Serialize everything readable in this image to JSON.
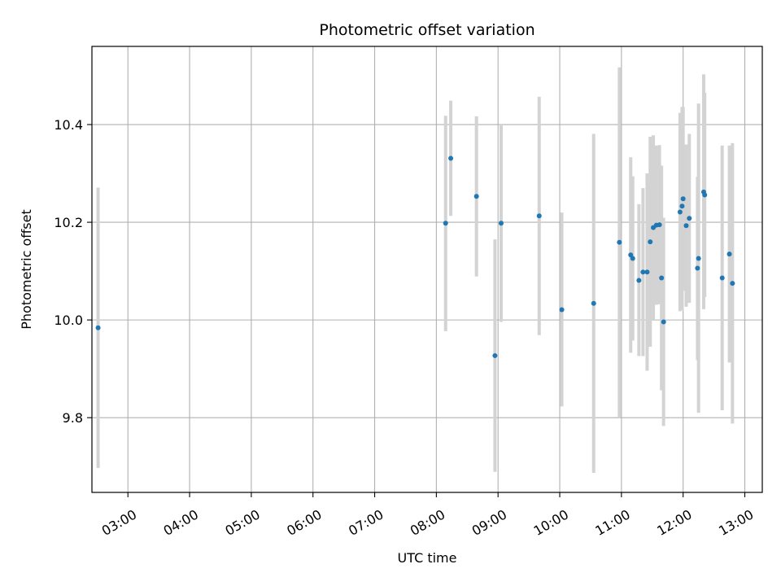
{
  "chart_data": {
    "type": "scatter",
    "title": "Photometric offset variation",
    "xlabel": "UTC time",
    "ylabel": "Photometric offset",
    "grid": true,
    "xlim": [
      "02:25",
      "13:17"
    ],
    "ylim": [
      9.647,
      10.56
    ],
    "x_ticks": [
      "03:00",
      "04:00",
      "05:00",
      "06:00",
      "07:00",
      "08:00",
      "09:00",
      "10:00",
      "11:00",
      "12:00",
      "13:00"
    ],
    "y_ticks": [
      9.8,
      10.0,
      10.2,
      10.4
    ],
    "y_tick_labels": [
      "9.8",
      "10.0",
      "10.2",
      "10.4"
    ],
    "colors": {
      "point": "#1f77b4",
      "errorbar": "#d3d3d3",
      "grid": "#b0b0b0"
    },
    "points": [
      {
        "time": "02:31",
        "y": 9.984,
        "low": 9.697,
        "high": 10.271
      },
      {
        "time": "08:09",
        "y": 10.198,
        "low": 9.977,
        "high": 10.418
      },
      {
        "time": "08:14",
        "y": 10.331,
        "low": 10.213,
        "high": 10.449
      },
      {
        "time": "08:39",
        "y": 10.253,
        "low": 10.089,
        "high": 10.417
      },
      {
        "time": "08:57",
        "y": 9.927,
        "low": 9.689,
        "high": 10.165
      },
      {
        "time": "09:03",
        "y": 10.198,
        "low": 9.996,
        "high": 10.4
      },
      {
        "time": "09:40",
        "y": 10.213,
        "low": 9.969,
        "high": 10.457
      },
      {
        "time": "10:02",
        "y": 10.021,
        "low": 9.823,
        "high": 10.22
      },
      {
        "time": "10:33",
        "y": 10.034,
        "low": 9.687,
        "high": 10.381
      },
      {
        "time": "10:58",
        "y": 10.159,
        "low": 9.8,
        "high": 10.517
      },
      {
        "time": "11:09",
        "y": 10.133,
        "low": 9.933,
        "high": 10.333
      },
      {
        "time": "11:11",
        "y": 10.126,
        "low": 9.958,
        "high": 10.294
      },
      {
        "time": "11:17",
        "y": 10.081,
        "low": 9.926,
        "high": 10.237
      },
      {
        "time": "11:21",
        "y": 10.098,
        "low": 9.926,
        "high": 10.27
      },
      {
        "time": "11:25",
        "y": 10.098,
        "low": 9.896,
        "high": 10.3
      },
      {
        "time": "11:28",
        "y": 10.16,
        "low": 9.945,
        "high": 10.375
      },
      {
        "time": "11:31",
        "y": 10.189,
        "low": 10.0,
        "high": 10.378
      },
      {
        "time": "11:34",
        "y": 10.194,
        "low": 10.031,
        "high": 10.357
      },
      {
        "time": "11:37",
        "y": 10.195,
        "low": 10.032,
        "high": 10.358
      },
      {
        "time": "11:39",
        "y": 10.086,
        "low": 9.856,
        "high": 10.316
      },
      {
        "time": "11:41",
        "y": 9.996,
        "low": 9.783,
        "high": 10.209
      },
      {
        "time": "11:57",
        "y": 10.221,
        "low": 10.018,
        "high": 10.424
      },
      {
        "time": "11:59",
        "y": 10.233,
        "low": 10.02,
        "high": 10.436
      },
      {
        "time": "12:00",
        "y": 10.248,
        "low": 10.06,
        "high": 10.436
      },
      {
        "time": "12:03",
        "y": 10.193,
        "low": 10.027,
        "high": 10.359
      },
      {
        "time": "12:06",
        "y": 10.208,
        "low": 10.035,
        "high": 10.381
      },
      {
        "time": "12:14",
        "y": 10.106,
        "low": 9.918,
        "high": 10.293
      },
      {
        "time": "12:15",
        "y": 10.126,
        "low": 9.81,
        "high": 10.443
      },
      {
        "time": "12:20",
        "y": 10.262,
        "low": 10.022,
        "high": 10.503
      },
      {
        "time": "12:21",
        "y": 10.256,
        "low": 10.047,
        "high": 10.465
      },
      {
        "time": "12:38",
        "y": 10.086,
        "low": 9.815,
        "high": 10.357
      },
      {
        "time": "12:45",
        "y": 10.135,
        "low": 9.913,
        "high": 10.357
      },
      {
        "time": "12:48",
        "y": 10.075,
        "low": 9.788,
        "high": 10.362
      }
    ]
  }
}
